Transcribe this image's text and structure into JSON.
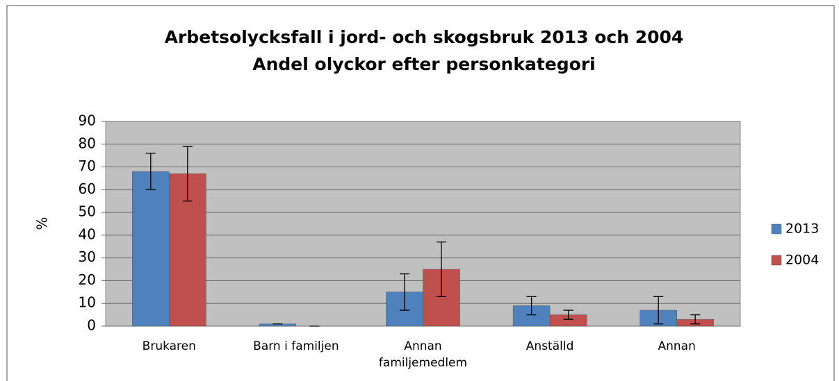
{
  "chart_data": {
    "type": "bar",
    "title": "Arbetsolycksfall i jord- och skogsbruk 2013 och 2004",
    "subtitle": "Andel olyckor efter personkategori",
    "y_label": "%",
    "categories": [
      "Brukaren",
      "Barn i familjen",
      "Annan familjemedlem",
      "Anställd",
      "Annan"
    ],
    "series": [
      {
        "name": "2013",
        "color": "#4f81bd",
        "values": [
          68,
          1,
          15,
          9,
          7
        ],
        "errors": [
          8,
          0,
          8,
          4,
          6
        ]
      },
      {
        "name": "2004",
        "color": "#c0504d",
        "values": [
          67,
          0,
          25,
          5,
          3
        ],
        "errors": [
          12,
          0,
          12,
          2,
          2
        ]
      }
    ],
    "ylim": [
      0,
      90
    ],
    "yticks": [
      0,
      10,
      20,
      30,
      40,
      50,
      60,
      70,
      80,
      90
    ],
    "grid": true,
    "legend": "right"
  }
}
